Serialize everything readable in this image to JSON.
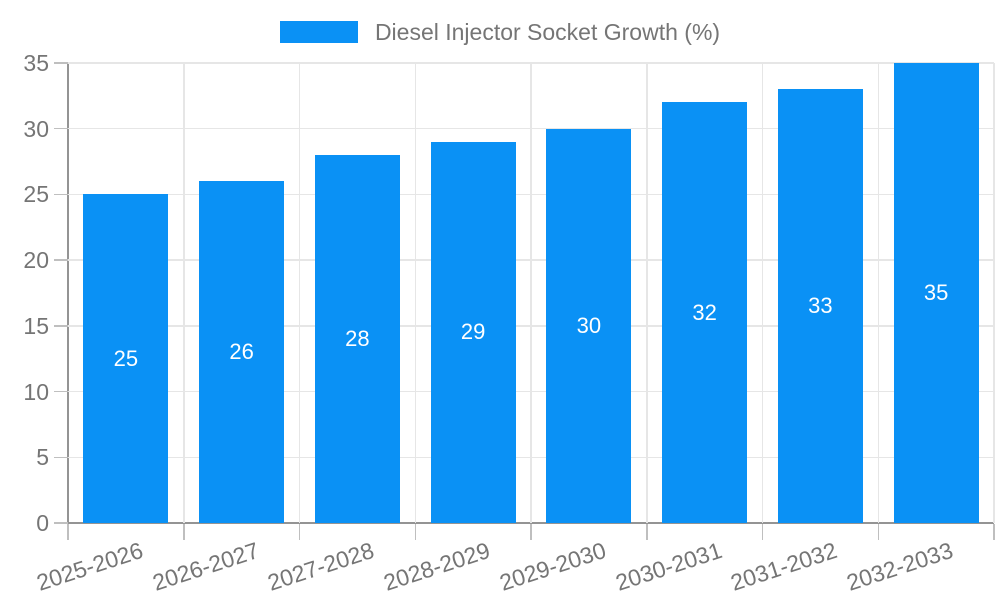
{
  "legend": {
    "label": "Diesel Injector Socket Growth (%)"
  },
  "chart_data": {
    "type": "bar",
    "title": "",
    "categories": [
      "2025-2026",
      "2026-2027",
      "2027-2028",
      "2028-2029",
      "2029-2030",
      "2030-2031",
      "2031-2032",
      "2032-2033"
    ],
    "series": [
      {
        "name": "Diesel Injector Socket Growth (%)",
        "values": [
          25,
          26,
          28,
          29,
          30,
          32,
          33,
          35
        ],
        "color": "#0A91F5"
      }
    ],
    "xlabel": "",
    "ylabel": "",
    "ylim": [
      0,
      35
    ],
    "yticks": [
      0,
      5,
      10,
      15,
      20,
      25,
      30,
      35
    ],
    "grid": true,
    "legend_position": "top-center",
    "value_labels": {
      "position": "inside-center",
      "color": "#FFFFFF"
    },
    "x_tick_label_rotation_deg": -18
  },
  "colors": {
    "bar": "#0A91F5",
    "gridline": "#E6E6E6",
    "axis": "#949494",
    "tick": "#BFBFBF",
    "axis_label": "#757575",
    "value_label": "#FFFFFF",
    "background": "#FFFFFF"
  }
}
